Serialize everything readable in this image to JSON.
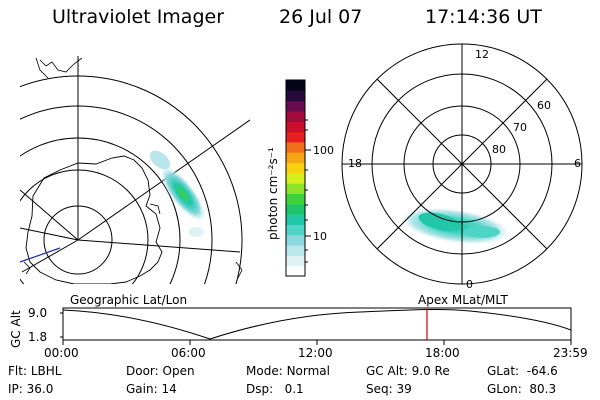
{
  "header": {
    "instrument": "Ultraviolet Imager",
    "date": "26 Jul 07",
    "time": "17:14:36 UT"
  },
  "colorbar": {
    "label": "photon cm⁻²s⁻¹",
    "ticks": [
      "100",
      "10"
    ],
    "colors": [
      "#ffffff",
      "#e0f2f4",
      "#b8e6ea",
      "#8ad8de",
      "#4fd4c8",
      "#21c7a8",
      "#1fc46a",
      "#3fd23a",
      "#8de22a",
      "#d6ee1e",
      "#f5d40f",
      "#f7a514",
      "#f06f1a",
      "#e6201e",
      "#c8102a",
      "#a00a3c",
      "#6a0a4e",
      "#28073a",
      "#05031a"
    ]
  },
  "left_map": {
    "projection_label": "Geographic Lat/Lon"
  },
  "right_map": {
    "projection_label": "Apex MLat/MLT",
    "mlt_labels": {
      "top": "12",
      "bottom": "0",
      "left": "18",
      "right": "6"
    },
    "lat_labels": [
      "60",
      "70",
      "80"
    ]
  },
  "timeline": {
    "y_label": "GC Alt",
    "y_ticks": [
      "9.0",
      "1.8"
    ],
    "x_ticks": [
      "00:00",
      "06:00",
      "12:00",
      "18:00",
      "23:59"
    ],
    "current_marker": "17:14:36",
    "marker_color": "#e00000"
  },
  "info": {
    "filter_label": "Flt:",
    "filter_value": "LBHL",
    "ip_label": "IP:",
    "ip_value": "36.0",
    "door_label": "Door:",
    "door_value": "Open",
    "gain_label": "Gain:",
    "gain_value": "14",
    "mode_label": "Mode:",
    "mode_value": "Normal",
    "dsp_label": "Dsp:",
    "dsp_value": "0.1",
    "gcalt_label": "GC Alt:",
    "gcalt_value": "9.0 Re",
    "seq_label": "Seq:",
    "seq_value": "39",
    "glat_label": "GLat:",
    "glat_value": "-64.6",
    "glon_label": "GLon:",
    "glon_value": "80.3"
  }
}
